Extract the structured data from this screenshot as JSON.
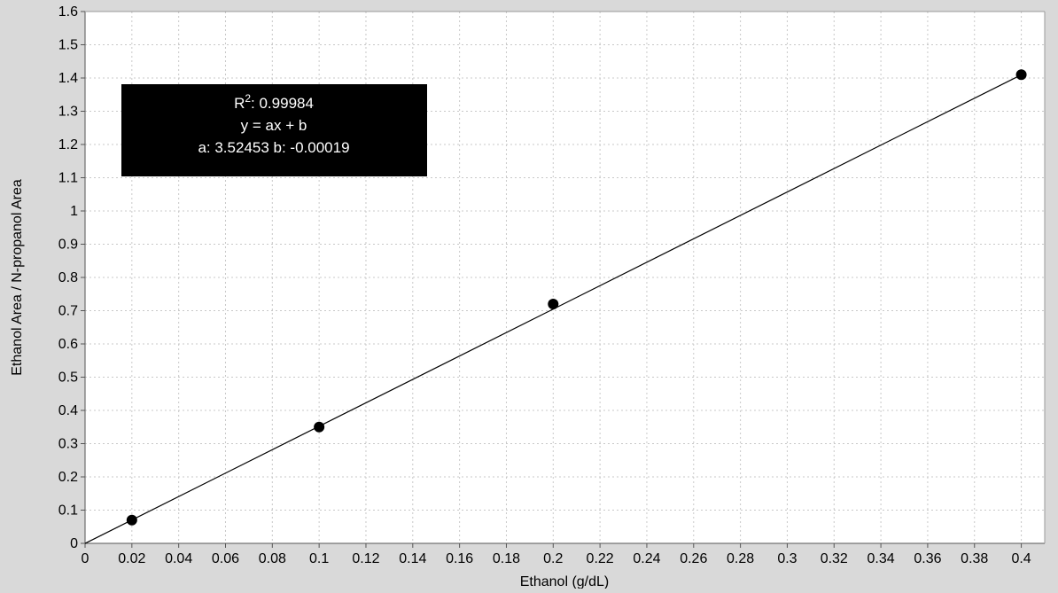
{
  "chart_data": {
    "type": "scatter",
    "title": "",
    "xlabel": "Ethanol (g/dL)",
    "ylabel": "Ethanol Area / N-propanol Area",
    "xlim": [
      0,
      0.41
    ],
    "ylim": [
      0,
      1.6
    ],
    "x_ticks": [
      0,
      0.02,
      0.04,
      0.06,
      0.08,
      0.1,
      0.12,
      0.14,
      0.16,
      0.18,
      0.2,
      0.22,
      0.24,
      0.26,
      0.28,
      0.3,
      0.32,
      0.34,
      0.36,
      0.38,
      0.4
    ],
    "x_tick_labels": [
      "0",
      "0.02",
      "0.04",
      "0.06",
      "0.08",
      "0.1",
      "0.12",
      "0.14",
      "0.16",
      "0.18",
      "0.2",
      "0.22",
      "0.24",
      "0.26",
      "0.28",
      "0.3",
      "0.32",
      "0.34",
      "0.36",
      "0.38",
      "0.4"
    ],
    "y_ticks": [
      0,
      0.1,
      0.2,
      0.3,
      0.4,
      0.5,
      0.6,
      0.7,
      0.8,
      0.9,
      1,
      1.1,
      1.2,
      1.3,
      1.4,
      1.5,
      1.6
    ],
    "y_tick_labels": [
      "0",
      "0.1",
      "0.2",
      "0.3",
      "0.4",
      "0.5",
      "0.6",
      "0.7",
      "0.8",
      "0.9",
      "1",
      "1.1",
      "1.2",
      "1.3",
      "1.4",
      "1.5",
      "1.6"
    ],
    "grid": true,
    "series": [
      {
        "x": [
          0.02,
          0.1,
          0.2,
          0.4
        ],
        "y": [
          0.07,
          0.35,
          0.72,
          1.41
        ]
      }
    ],
    "fit_line": {
      "a": 3.52453,
      "b": -0.00019,
      "x_range": [
        0,
        0.4
      ]
    },
    "annotation": {
      "r2_label": "R",
      "r2_superscript": "2",
      "r2_value": ": 0.99984",
      "equation": "y = ax + b",
      "coefficients": "a: 3.52453 b: -0.00019"
    }
  }
}
